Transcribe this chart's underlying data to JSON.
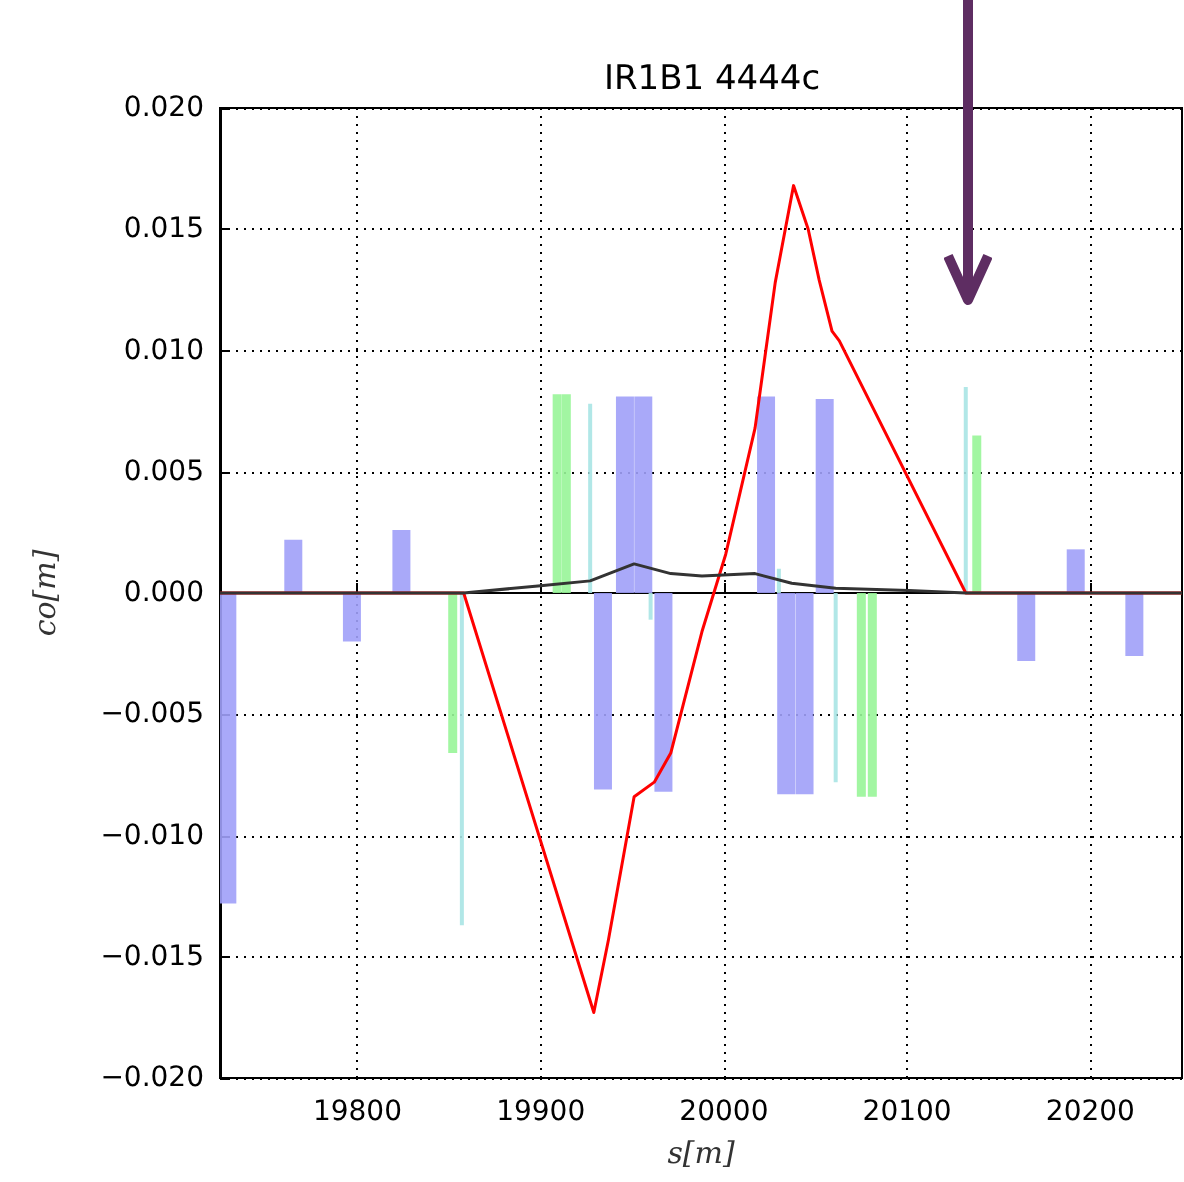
{
  "chart_data": {
    "type": "bar",
    "title": "IR1B1 4444c",
    "xlabel": "s[m]",
    "ylabel": "co[m]",
    "xlim": [
      19725,
      20250
    ],
    "xticks": [
      19800,
      19900,
      20000,
      20100,
      20200
    ],
    "ylim": [
      -0.02,
      0.02
    ],
    "yticks": [
      {
        "value": -0.02,
        "label": "−0.020"
      },
      {
        "value": -0.015,
        "label": "−0.015"
      },
      {
        "value": -0.01,
        "label": "−0.010"
      },
      {
        "value": -0.005,
        "label": "−0.005"
      },
      {
        "value": 0,
        "label": "0.000"
      },
      {
        "value": 0.005,
        "label": "0.005"
      },
      {
        "value": 0.01,
        "label": "0.010"
      },
      {
        "value": 0.015,
        "label": "0.015"
      },
      {
        "value": 0.02,
        "label": "0.020"
      }
    ],
    "grid": true,
    "marker": "none",
    "series": [
      {
        "color": "#a0a0f8",
        "x": [
          19729,
          19765,
          19797,
          19824,
          19934,
          19946,
          19956,
          19967,
          20023,
          20034,
          20044,
          20055,
          20165,
          20192,
          20224
        ],
        "values": [
          -0.0128,
          0.0022,
          -0.002,
          0.0026,
          -0.0081,
          0.0081,
          0.0081,
          -0.0082,
          0.0081,
          -0.0083,
          -0.0083,
          0.008,
          -0.0028,
          0.0018,
          -0.0026
        ]
      },
      {
        "color": "#98f598",
        "x": [
          19852,
          19909,
          19914,
          20075,
          20081,
          20138
        ],
        "values": [
          -0.0066,
          0.0082,
          0.0082,
          -0.0084,
          -0.0084,
          0.0065
        ]
      },
      {
        "color": "#a8e4e4",
        "x": [
          19857,
          19927,
          19960,
          20030,
          20061,
          20132
        ],
        "values": [
          -0.0137,
          0.0078,
          -0.0011,
          0.001,
          -0.0078,
          0.0085
        ]
      },
      {
        "type": "line",
        "color": "#ff0000",
        "line_style": "solid",
        "x": [
          19725,
          19858,
          19929,
          19937,
          19951,
          19962,
          19971,
          19988,
          20001,
          20017,
          20028,
          20038,
          20046,
          20052,
          20059,
          20063,
          20132,
          20250
        ],
        "values": [
          0,
          0,
          -0.0173,
          -0.0143,
          -0.0084,
          -0.0078,
          -0.0066,
          -0.0016,
          0.0016,
          0.0068,
          0.0128,
          0.0168,
          0.015,
          0.0129,
          0.0108,
          0.0104,
          0,
          0
        ]
      },
      {
        "type": "line",
        "color": "#333333",
        "line_style": "solid",
        "x": [
          19725,
          19858,
          19900,
          19927,
          19951,
          19971,
          19988,
          20017,
          20037,
          20061,
          20101,
          20132,
          20250
        ],
        "values": [
          0,
          0,
          0.0003,
          0.0005,
          0.0012,
          0.0008,
          0.0007,
          0.0008,
          0.0004,
          0.0002,
          0.0001,
          0,
          0
        ]
      }
    ]
  }
}
